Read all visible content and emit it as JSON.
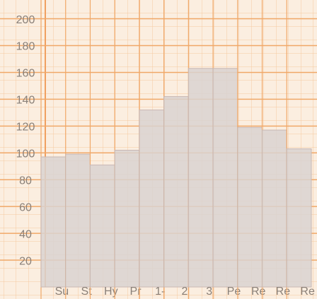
{
  "chart_data": {
    "type": "bar",
    "categories": [
      "Su",
      "St",
      "Hy",
      "Pr",
      "1-",
      "2",
      "3",
      "Pe",
      "Re",
      "Re",
      "Re"
    ],
    "values": [
      97,
      99,
      91,
      102,
      132,
      142,
      163,
      163,
      119,
      117,
      103
    ],
    "color": "#d9d2d0",
    "ylim": [
      0,
      214
    ],
    "yticks": [
      20,
      40,
      60,
      80,
      100,
      120,
      140,
      160,
      180,
      200
    ],
    "grid": true
  }
}
